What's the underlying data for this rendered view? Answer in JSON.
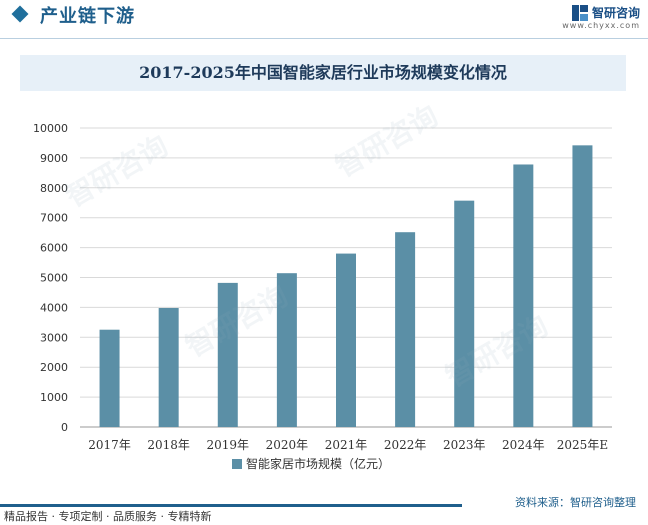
{
  "header": {
    "section_title": "产业链下游",
    "brand_name": "智研咨询",
    "brand_url": "www.chyxx.com"
  },
  "footer": {
    "left_text": "精品报告 · 专项定制 · 品质服务 · 专精特新",
    "source": "资料来源：智研咨询整理"
  },
  "watermark_text": "智研咨询",
  "colors": {
    "bar": "#5b8fa6",
    "accent": "#1f5f8c"
  },
  "chart_data": {
    "type": "bar",
    "title": "2017-2025年中国智能家居行业市场规模变化情况",
    "categories": [
      "2017年",
      "2018年",
      "2019年",
      "2020年",
      "2021年",
      "2022年",
      "2023年",
      "2024年",
      "2025年E"
    ],
    "series": [
      {
        "name": "智能家居市场规模（亿元）",
        "values": [
          3254,
          3980,
          4820,
          5144,
          5800,
          6515,
          7570,
          8780,
          9420
        ]
      }
    ],
    "ylim": [
      0,
      10000
    ],
    "yticks": [
      0,
      1000,
      2000,
      3000,
      4000,
      5000,
      6000,
      7000,
      8000,
      9000,
      10000
    ],
    "grid": true,
    "legend": "bottom"
  }
}
